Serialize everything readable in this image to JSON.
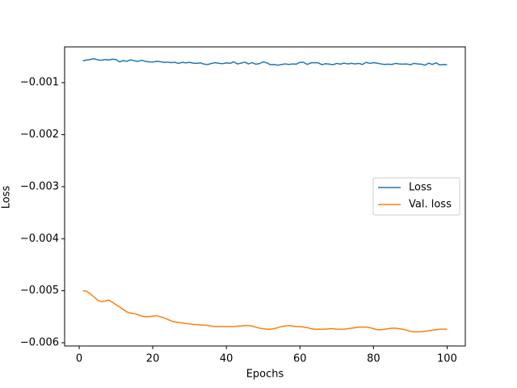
{
  "chart_data": {
    "type": "line",
    "x_label": "Epochs",
    "y_label": "Loss",
    "x": [
      1,
      2,
      3,
      4,
      5,
      6,
      7,
      8,
      9,
      10,
      11,
      12,
      13,
      14,
      15,
      16,
      17,
      18,
      19,
      20,
      21,
      22,
      23,
      24,
      25,
      26,
      27,
      28,
      29,
      30,
      31,
      32,
      33,
      34,
      35,
      36,
      37,
      38,
      39,
      40,
      41,
      42,
      43,
      44,
      45,
      46,
      47,
      48,
      49,
      50,
      51,
      52,
      53,
      54,
      55,
      56,
      57,
      58,
      59,
      60,
      61,
      62,
      63,
      64,
      65,
      66,
      67,
      68,
      69,
      70,
      71,
      72,
      73,
      74,
      75,
      76,
      77,
      78,
      79,
      80,
      81,
      82,
      83,
      84,
      85,
      86,
      87,
      88,
      89,
      90,
      91,
      92,
      93,
      94,
      95,
      96,
      97,
      98,
      99,
      100
    ],
    "series": [
      {
        "name": "Loss",
        "color": "#1f77b4",
        "values": [
          -0.00058,
          -0.000565,
          -0.000555,
          -0.00054,
          -0.00056,
          -0.00057,
          -0.000555,
          -0.000565,
          -0.00055,
          -0.000555,
          -0.0006,
          -0.000575,
          -0.00059,
          -0.00056,
          -0.00058,
          -0.00059,
          -0.00057,
          -0.00059,
          -0.0006,
          -0.000605,
          -0.00059,
          -0.000595,
          -0.00061,
          -0.000605,
          -0.000615,
          -0.00061,
          -0.00063,
          -0.00061,
          -0.00062,
          -0.00061,
          -0.000625,
          -0.00063,
          -0.00062,
          -0.000645,
          -0.00065,
          -0.00063,
          -0.000615,
          -0.00063,
          -0.000635,
          -0.00062,
          -0.00063,
          -0.0006,
          -0.00064,
          -0.000625,
          -0.000605,
          -0.00064,
          -0.000615,
          -0.000645,
          -0.000635,
          -0.0006,
          -0.00062,
          -0.000655,
          -0.00065,
          -0.000665,
          -0.00065,
          -0.00064,
          -0.00065,
          -0.00064,
          -0.000645,
          -0.00061,
          -0.00061,
          -0.00065,
          -0.00062,
          -0.000615,
          -0.00062,
          -0.000655,
          -0.000635,
          -0.000645,
          -0.000655,
          -0.00063,
          -0.000645,
          -0.000625,
          -0.00064,
          -0.00063,
          -0.00064,
          -0.00063,
          -0.00065,
          -0.00061,
          -0.00063,
          -0.000615,
          -0.000625,
          -0.00064,
          -0.00065,
          -0.000645,
          -0.00065,
          -0.00063,
          -0.00064,
          -0.000645,
          -0.00064,
          -0.000655,
          -0.00063,
          -0.00064,
          -0.000645,
          -0.000665,
          -0.000625,
          -0.00065,
          -0.00062,
          -0.00066,
          -0.00065,
          -0.000655
        ]
      },
      {
        "name": "Val. loss",
        "color": "#ff7f0e",
        "values": [
          -0.005,
          -0.00501,
          -0.00506,
          -0.00512,
          -0.00518,
          -0.00521,
          -0.0052,
          -0.00518,
          -0.00522,
          -0.00527,
          -0.00531,
          -0.00536,
          -0.00541,
          -0.00543,
          -0.00544,
          -0.00546,
          -0.00549,
          -0.0055,
          -0.0055,
          -0.00549,
          -0.00548,
          -0.0055,
          -0.00552,
          -0.00555,
          -0.00558,
          -0.0056,
          -0.00561,
          -0.00562,
          -0.00563,
          -0.00564,
          -0.00565,
          -0.00565,
          -0.00566,
          -0.00566,
          -0.00567,
          -0.00568,
          -0.00569,
          -0.00569,
          -0.00569,
          -0.00569,
          -0.00569,
          -0.00569,
          -0.00568,
          -0.00568,
          -0.00567,
          -0.00567,
          -0.00568,
          -0.0057,
          -0.00572,
          -0.00573,
          -0.00574,
          -0.00574,
          -0.00573,
          -0.00571,
          -0.00569,
          -0.00568,
          -0.00567,
          -0.00568,
          -0.00569,
          -0.00569,
          -0.0057,
          -0.00571,
          -0.00573,
          -0.00574,
          -0.00574,
          -0.00574,
          -0.00574,
          -0.00573,
          -0.00573,
          -0.00574,
          -0.00574,
          -0.00574,
          -0.00573,
          -0.00572,
          -0.00571,
          -0.0057,
          -0.0057,
          -0.0057,
          -0.00571,
          -0.00573,
          -0.00575,
          -0.00575,
          -0.00574,
          -0.00573,
          -0.00572,
          -0.00572,
          -0.00573,
          -0.00574,
          -0.00576,
          -0.00578,
          -0.00579,
          -0.00579,
          -0.00579,
          -0.00578,
          -0.00577,
          -0.00576,
          -0.00575,
          -0.00574,
          -0.00574,
          -0.00574
        ]
      }
    ],
    "xlim": [
      -3.95,
      104.95
    ],
    "ylim": [
      -0.0060625,
      -0.0003125
    ],
    "xticks": [
      0,
      20,
      40,
      60,
      80,
      100
    ],
    "yticks": [
      {
        "value": -0.006,
        "label": "−0.006"
      },
      {
        "value": -0.005,
        "label": "−0.005"
      },
      {
        "value": -0.004,
        "label": "−0.004"
      },
      {
        "value": -0.003,
        "label": "−0.003"
      },
      {
        "value": -0.002,
        "label": "−0.002"
      },
      {
        "value": -0.001,
        "label": "−0.001"
      }
    ],
    "legend": "center right",
    "grid": false
  }
}
